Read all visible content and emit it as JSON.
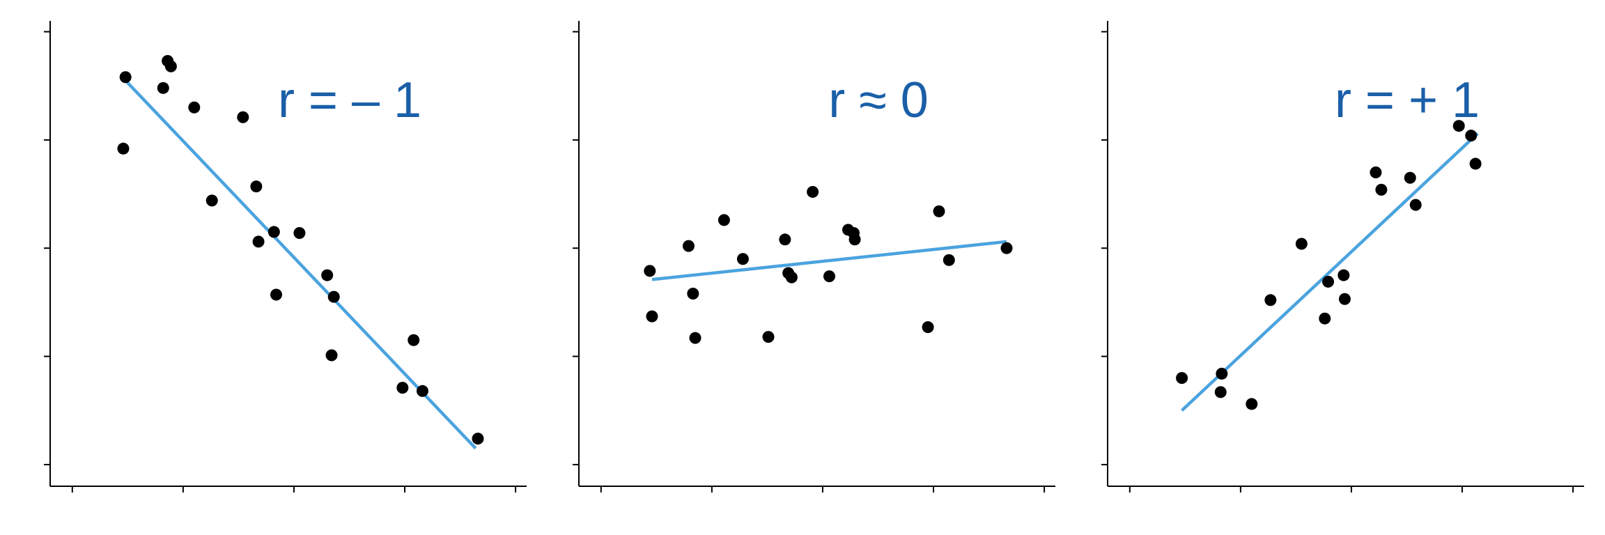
{
  "colors": {
    "background": "#ffffff",
    "axis": "#000000",
    "points": "#000000",
    "fit_line": "#4aa3df",
    "title": "#1a5fa8"
  },
  "chart_data": [
    {
      "type": "scatter",
      "title": "r = – 1",
      "xlabel": "",
      "ylabel": "",
      "xlim": [
        0,
        4.3
      ],
      "ylim": [
        0,
        4.3
      ],
      "x_ticks": [
        0.2,
        1.2,
        2.2,
        3.2,
        4.2
      ],
      "y_ticks": [
        0.2,
        1.2,
        2.2,
        3.2,
        4.2
      ],
      "tick_labels_shown": false,
      "grid": false,
      "series": [
        {
          "points": [
            {
              "x": 0.68,
              "y": 3.78
            },
            {
              "x": 1.06,
              "y": 3.93
            },
            {
              "x": 1.09,
              "y": 3.88
            },
            {
              "x": 1.02,
              "y": 3.68
            },
            {
              "x": 0.66,
              "y": 3.12
            },
            {
              "x": 1.3,
              "y": 3.5
            },
            {
              "x": 1.74,
              "y": 3.41
            },
            {
              "x": 1.86,
              "y": 2.77
            },
            {
              "x": 1.46,
              "y": 2.64
            },
            {
              "x": 1.88,
              "y": 2.26
            },
            {
              "x": 2.02,
              "y": 2.35
            },
            {
              "x": 2.25,
              "y": 2.34
            },
            {
              "x": 2.5,
              "y": 1.95
            },
            {
              "x": 2.56,
              "y": 1.75
            },
            {
              "x": 2.04,
              "y": 1.77
            },
            {
              "x": 2.54,
              "y": 1.21
            },
            {
              "x": 3.28,
              "y": 1.35
            },
            {
              "x": 3.18,
              "y": 0.91
            },
            {
              "x": 3.36,
              "y": 0.88
            },
            {
              "x": 3.86,
              "y": 0.44
            }
          ]
        }
      ],
      "fit_line": {
        "x": [
          0.67,
          3.84
        ],
        "y": [
          3.76,
          0.35
        ]
      }
    },
    {
      "type": "scatter",
      "title": "r ≈ 0",
      "xlabel": "",
      "ylabel": "",
      "xlim": [
        0,
        4.3
      ],
      "ylim": [
        0,
        4.3
      ],
      "x_ticks": [
        0.2,
        1.2,
        2.2,
        3.2,
        4.2
      ],
      "y_ticks": [
        0.2,
        1.2,
        2.2,
        3.2,
        4.2
      ],
      "tick_labels_shown": false,
      "grid": false,
      "series": [
        {
          "points": [
            {
              "x": 2.11,
              "y": 2.72
            },
            {
              "x": 1.31,
              "y": 2.46
            },
            {
              "x": 0.99,
              "y": 2.22
            },
            {
              "x": 1.86,
              "y": 2.28
            },
            {
              "x": 2.43,
              "y": 2.37
            },
            {
              "x": 2.48,
              "y": 2.34
            },
            {
              "x": 2.49,
              "y": 2.28
            },
            {
              "x": 3.25,
              "y": 2.54
            },
            {
              "x": 0.64,
              "y": 1.99
            },
            {
              "x": 1.48,
              "y": 2.1
            },
            {
              "x": 3.34,
              "y": 2.09
            },
            {
              "x": 3.86,
              "y": 2.2
            },
            {
              "x": 1.89,
              "y": 1.97
            },
            {
              "x": 1.92,
              "y": 1.93
            },
            {
              "x": 2.26,
              "y": 1.94
            },
            {
              "x": 1.03,
              "y": 1.78
            },
            {
              "x": 0.66,
              "y": 1.57
            },
            {
              "x": 1.05,
              "y": 1.37
            },
            {
              "x": 1.71,
              "y": 1.38
            },
            {
              "x": 3.15,
              "y": 1.47
            }
          ]
        }
      ],
      "fit_line": {
        "x": [
          0.66,
          3.86
        ],
        "y": [
          1.91,
          2.26
        ]
      }
    },
    {
      "type": "scatter",
      "title": "r = + 1",
      "xlabel": "",
      "ylabel": "",
      "xlim": [
        0,
        4.3
      ],
      "ylim": [
        0,
        4.3
      ],
      "x_ticks": [
        0.2,
        1.2,
        2.2,
        3.2,
        4.2
      ],
      "y_ticks": [
        0.2,
        1.2,
        2.2,
        3.2,
        4.2
      ],
      "tick_labels_shown": false,
      "grid": false,
      "series": [
        {
          "points": [
            {
              "x": 3.17,
              "y": 3.33
            },
            {
              "x": 3.28,
              "y": 3.24
            },
            {
              "x": 3.32,
              "y": 2.98
            },
            {
              "x": 2.47,
              "y": 2.74
            },
            {
              "x": 2.73,
              "y": 2.85
            },
            {
              "x": 2.42,
              "y": 2.9
            },
            {
              "x": 2.78,
              "y": 2.6
            },
            {
              "x": 1.75,
              "y": 2.24
            },
            {
              "x": 1.99,
              "y": 1.89
            },
            {
              "x": 2.13,
              "y": 1.95
            },
            {
              "x": 2.14,
              "y": 1.73
            },
            {
              "x": 1.47,
              "y": 1.72
            },
            {
              "x": 1.96,
              "y": 1.55
            },
            {
              "x": 0.67,
              "y": 1.0
            },
            {
              "x": 1.03,
              "y": 1.04
            },
            {
              "x": 1.02,
              "y": 0.87
            },
            {
              "x": 1.3,
              "y": 0.76
            }
          ]
        }
      ],
      "fit_line": {
        "x": [
          0.67,
          3.34
        ],
        "y": [
          0.7,
          3.26
        ]
      }
    }
  ]
}
